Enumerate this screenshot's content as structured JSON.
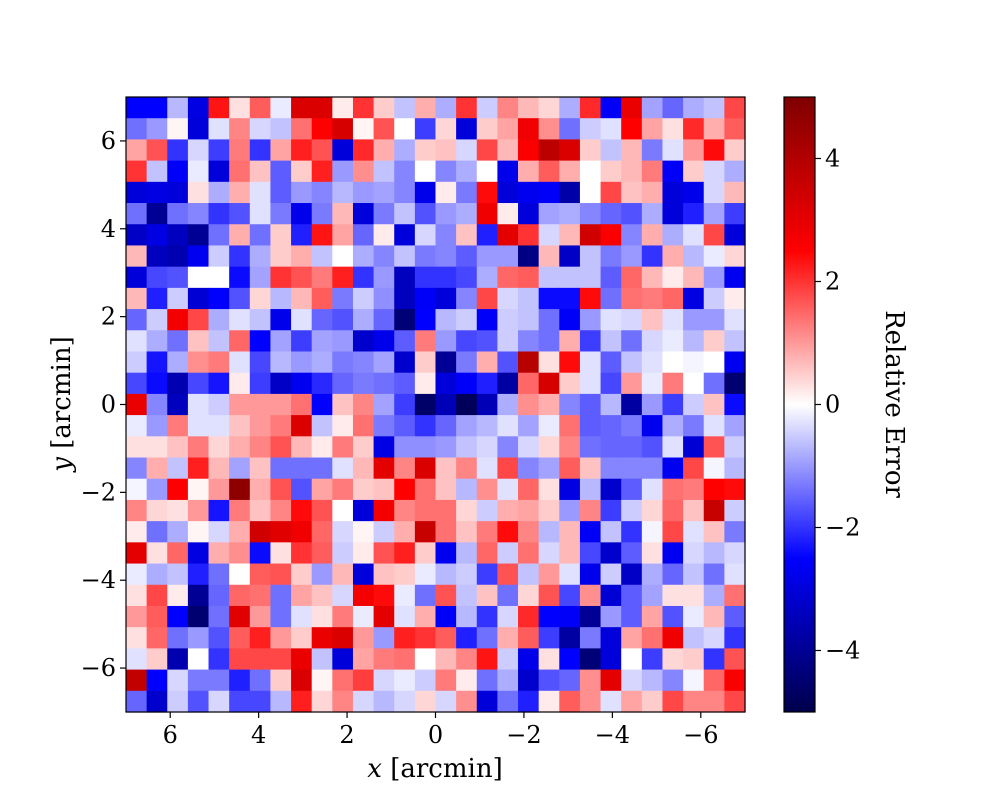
{
  "chart_data": {
    "type": "heatmap",
    "xlabel_var": "x",
    "xlabel_unit": " [arcmin]",
    "ylabel_var": "y",
    "ylabel_unit": " [arcmin]",
    "colorbar_label": "Relative Error",
    "xlim": [
      7,
      -7
    ],
    "ylim": [
      -7,
      7
    ],
    "color_range": [
      -5,
      5
    ],
    "colormap": "seismic",
    "colormap_stops": [
      "#00004c",
      "#0000ff",
      "#ffffff",
      "#ff0000",
      "#7f0000"
    ],
    "x_ticks": [
      6,
      4,
      2,
      0,
      -2,
      -4,
      -6
    ],
    "y_ticks": [
      6,
      4,
      2,
      0,
      -2,
      -4,
      -6
    ],
    "colorbar_ticks": [
      4,
      2,
      0,
      -2,
      -4
    ],
    "grid": false,
    "rows_from_top": [
      [
        -2.5,
        -2.5,
        -0.7,
        -2.9,
        2.3,
        0.3,
        1.6,
        -0.2,
        3.2,
        3.2,
        0.2,
        2.0,
        0.5,
        -0.6,
        0.8,
        -0.8,
        2.0,
        -0.5,
        1.2,
        0.7,
        0.4,
        -0.8,
        2.1,
        -2.6,
        2.9,
        -0.9,
        -1.5,
        -0.8,
        -0.6,
        1.8
      ],
      [
        -1.4,
        -1.0,
        0.1,
        -3.0,
        -0.3,
        1.2,
        -0.4,
        -0.6,
        1.4,
        2.5,
        3.3,
        0.1,
        1.7,
        0.0,
        -1.9,
        0.4,
        -3.0,
        0.5,
        0.9,
        2.8,
        1.1,
        -1.4,
        -0.5,
        -0.3,
        2.5,
        0.9,
        0.3,
        2.1,
        0.8,
        1.6
      ],
      [
        0.9,
        1.7,
        -2.0,
        -0.4,
        -1.9,
        1.3,
        -2.0,
        0.9,
        2.2,
        1.7,
        -3.0,
        2.1,
        0.8,
        -0.8,
        0.5,
        0.6,
        -0.4,
        1.8,
        0.7,
        2.6,
        3.8,
        3.2,
        0.5,
        -0.6,
        0.7,
        -1.3,
        -0.3,
        1.0,
        2.4,
        0.5
      ],
      [
        2.0,
        -0.6,
        -2.6,
        -0.2,
        -3.0,
        1.4,
        0.6,
        -1.6,
        0.5,
        2.2,
        -1.0,
        1.1,
        -0.6,
        -1.2,
        0.0,
        -1.2,
        -0.8,
        0.0,
        -2.8,
        0.8,
        1.6,
        0.8,
        0.0,
        0.5,
        0.7,
        1.3,
        -2.6,
        0.5,
        -0.4,
        -0.8
      ],
      [
        -3.0,
        -2.9,
        -3.0,
        0.3,
        -0.8,
        0.8,
        -0.3,
        -1.6,
        -1.0,
        -1.2,
        -0.7,
        -1.0,
        -0.9,
        -1.2,
        -2.8,
        0.2,
        -1.3,
        2.4,
        -3.0,
        -2.7,
        -2.6,
        -3.7,
        0.0,
        1.8,
        0.6,
        0.8,
        -3.0,
        -2.8,
        -0.4,
        0.7
      ],
      [
        -1.4,
        -4.0,
        -1.4,
        -1.2,
        -2.0,
        -1.7,
        -0.3,
        -1.3,
        -2.8,
        -1.3,
        0.7,
        -3.0,
        -1.3,
        -0.6,
        -1.7,
        -1.0,
        -0.8,
        2.8,
        0.2,
        -3.0,
        -0.9,
        -0.8,
        -1.2,
        -1.5,
        -1.7,
        -0.8,
        -3.0,
        -2.2,
        -0.9,
        -1.9
      ],
      [
        -3.3,
        -2.9,
        -3.4,
        -4.0,
        -1.4,
        0.8,
        -1.4,
        0.5,
        -2.2,
        2.3,
        0.9,
        -1.5,
        0.2,
        -3.0,
        -0.4,
        -1.2,
        0.6,
        -2.2,
        3.0,
        2.0,
        -0.4,
        0.7,
        3.4,
        2.6,
        -1.2,
        0.8,
        -0.8,
        -0.3,
        1.8,
        -3.0
      ],
      [
        0.7,
        -3.4,
        -3.6,
        -2.7,
        -0.5,
        -2.0,
        -0.8,
        0.5,
        0.8,
        -0.6,
        0.0,
        -0.8,
        -1.2,
        -0.6,
        -1.3,
        -1.2,
        -1.6,
        -1.0,
        -1.0,
        -4.2,
        0.7,
        -3.3,
        -0.6,
        -1.3,
        -1.0,
        -2.0,
        0.8,
        -0.7,
        -0.2,
        0.4
      ],
      [
        -3.0,
        -1.8,
        -1.7,
        0.0,
        0.0,
        -2.4,
        -0.9,
        2.0,
        1.7,
        1.3,
        2.2,
        -2.0,
        -1.0,
        -3.4,
        -2.0,
        -2.0,
        -1.8,
        -0.8,
        1.5,
        1.6,
        -0.6,
        -0.6,
        -0.6,
        -1.6,
        1.5,
        0.7,
        0.2,
        0.7,
        -1.0,
        -2.7
      ],
      [
        0.7,
        -2.2,
        -0.5,
        -3.1,
        -2.5,
        -1.7,
        0.4,
        -0.7,
        0.7,
        1.6,
        -1.3,
        -0.5,
        -1.1,
        -3.4,
        -2.6,
        -3.0,
        -1.2,
        1.8,
        -0.4,
        -0.6,
        -2.4,
        -2.4,
        2.4,
        -1.4,
        1.4,
        1.3,
        1.5,
        -2.9,
        -0.5,
        0.2
      ],
      [
        -1.5,
        -0.5,
        2.7,
        1.8,
        -0.8,
        -0.3,
        -0.6,
        -2.8,
        -0.3,
        -1.5,
        -1.7,
        -0.8,
        -1.5,
        -4.4,
        -2.5,
        -0.7,
        -0.5,
        -2.6,
        -0.5,
        -0.6,
        -1.4,
        -2.6,
        -1.0,
        -0.3,
        -0.4,
        0.6,
        -0.3,
        -1.0,
        -1.0,
        -0.3
      ],
      [
        -0.3,
        -0.8,
        -1.4,
        0.6,
        -0.6,
        1.5,
        -2.5,
        -0.9,
        -1.9,
        -0.9,
        -1.0,
        -3.2,
        -2.8,
        -1.6,
        1.3,
        -1.0,
        -1.8,
        -1.7,
        -0.5,
        -1.2,
        -1.4,
        0.8,
        -1.9,
        -0.6,
        -1.4,
        -0.4,
        -0.2,
        -0.7,
        0.5,
        -0.6
      ],
      [
        -0.5,
        -2.3,
        -0.8,
        1.1,
        1.3,
        -0.3,
        -1.8,
        -0.7,
        -1.0,
        -0.8,
        -1.3,
        -1.2,
        -0.9,
        -3.2,
        0.5,
        -4.0,
        -1.3,
        0.8,
        -1.7,
        3.9,
        0.3,
        2.4,
        -0.3,
        -1.6,
        -0.6,
        -0.3,
        0.0,
        -0.1,
        0.0,
        -2.7
      ],
      [
        -1.8,
        -2.4,
        -3.6,
        -1.8,
        -2.3,
        0.2,
        -1.9,
        -3.3,
        -2.7,
        -2.1,
        -1.5,
        -1.3,
        -1.4,
        -1.6,
        0.2,
        -3.0,
        -2.6,
        -2.2,
        -3.8,
        1.5,
        3.3,
        0.5,
        -0.3,
        -1.8,
        1.0,
        -0.2,
        1.3,
        0.0,
        -1.4,
        -4.5
      ],
      [
        2.9,
        -1.2,
        -3.4,
        -0.3,
        -0.5,
        1.0,
        1.0,
        1.0,
        1.4,
        -2.5,
        0.6,
        1.2,
        -0.9,
        -1.9,
        -4.6,
        -3.5,
        -4.8,
        -3.5,
        -0.8,
        1.1,
        0.8,
        -1.2,
        -1.6,
        -0.7,
        -3.8,
        -1.0,
        -1.9,
        -0.5,
        0.6,
        -2.4
      ],
      [
        -0.2,
        -1.0,
        1.3,
        -0.3,
        -0.3,
        0.6,
        1.0,
        1.3,
        3.2,
        -0.6,
        0.2,
        1.4,
        -1.3,
        -1.6,
        -2.0,
        -1.5,
        -0.9,
        -0.7,
        -0.3,
        -0.9,
        -0.2,
        1.4,
        -1.6,
        -1.5,
        -1.3,
        -2.7,
        -0.8,
        -1.3,
        -0.3,
        -0.9
      ],
      [
        0.3,
        0.3,
        0.6,
        1.3,
        0.4,
        0.8,
        1.2,
        1.7,
        0.7,
        0.2,
        1.3,
        0.5,
        -2.9,
        -1.1,
        -1.1,
        -1.0,
        -0.6,
        -0.4,
        -1.2,
        -0.4,
        0.4,
        1.2,
        -1.4,
        -1.5,
        -1.5,
        -1.7,
        -0.3,
        -3.1,
        1.7,
        -0.5
      ],
      [
        -1.2,
        0.8,
        -0.6,
        2.2,
        0.7,
        -0.9,
        0.6,
        -1.4,
        -1.4,
        -1.4,
        -0.3,
        0.7,
        3.0,
        1.2,
        3.2,
        0.6,
        1.2,
        -0.3,
        1.8,
        -1.2,
        -0.9,
        1.6,
        0.6,
        -1.2,
        -1.2,
        -1.2,
        -2.7,
        1.8,
        -0.1,
        -0.7
      ],
      [
        -0.1,
        -1.0,
        2.5,
        0.1,
        1.0,
        4.7,
        0.8,
        1.7,
        -1.7,
        0.9,
        1.3,
        0.5,
        0.6,
        2.5,
        1.4,
        0.6,
        -0.7,
        1.1,
        -0.3,
        1.5,
        0.3,
        -2.9,
        -0.7,
        -3.2,
        -1.6,
        -0.3,
        1.4,
        1.3,
        2.5,
        2.4
      ],
      [
        1.2,
        0.4,
        0.3,
        1.0,
        -2.3,
        1.3,
        0.6,
        1.2,
        2.4,
        1.7,
        0.0,
        -3.0,
        2.7,
        1.2,
        1.4,
        1.4,
        0.4,
        -0.5,
        0.8,
        0.9,
        0.5,
        -1.0,
        1.2,
        -1.9,
        -0.5,
        0.4,
        1.5,
        0.6,
        3.6,
        -0.5
      ],
      [
        0.2,
        -1.4,
        -0.8,
        0.1,
        -0.4,
        0.8,
        3.4,
        3.1,
        2.8,
        1.5,
        -0.4,
        0.1,
        -0.5,
        0.8,
        3.6,
        1.4,
        0.6,
        1.3,
        2.4,
        1.2,
        -0.7,
        0.7,
        -2.6,
        -0.6,
        -2.0,
        -0.1,
        1.8,
        -0.3,
        0.6,
        -1.3
      ],
      [
        3.0,
        0.3,
        1.5,
        -2.9,
        0.8,
        1.1,
        -2.4,
        0.3,
        2.0,
        1.6,
        -0.5,
        0.2,
        1.7,
        2.2,
        0.5,
        -2.7,
        -0.7,
        1.5,
        -0.5,
        1.4,
        -0.4,
        0.7,
        -1.8,
        -3.2,
        -1.6,
        0.3,
        -2.7,
        -0.4,
        -0.7,
        -0.4
      ],
      [
        -0.2,
        -0.8,
        -0.6,
        -2.2,
        -1.4,
        0.0,
        1.6,
        1.7,
        0.5,
        -1.0,
        0.7,
        -3.0,
        0.6,
        0.5,
        -0.2,
        -0.7,
        -0.5,
        -1.9,
        1.7,
        -0.6,
        1.0,
        -0.3,
        -2.8,
        -0.5,
        -3.3,
        -0.8,
        -1.5,
        -0.6,
        -1.4,
        -0.3
      ],
      [
        0.3,
        1.8,
        0.2,
        -4.0,
        -1.5,
        1.5,
        1.4,
        -1.4,
        0.9,
        0.6,
        -0.4,
        2.7,
        2.4,
        -0.2,
        -1.4,
        1.7,
        -0.6,
        0.6,
        -1.4,
        0.4,
        1.7,
        -1.8,
        1.1,
        -3.1,
        -1.6,
        -0.9,
        0.3,
        0.3,
        -0.8,
        1.4
      ],
      [
        1.0,
        1.6,
        -2.5,
        -4.5,
        -1.4,
        3.1,
        1.0,
        -1.4,
        -0.3,
        0.3,
        1.3,
        -0.2,
        3.0,
        -0.3,
        0.8,
        -2.6,
        -0.7,
        -2.0,
        -0.4,
        2.1,
        -2.5,
        -2.6,
        -4.0,
        -1.0,
        -1.6,
        0.9,
        -1.7,
        -0.2,
        0.7,
        -1.6
      ],
      [
        0.3,
        1.5,
        -1.4,
        -1.0,
        -1.7,
        1.6,
        2.2,
        1.0,
        0.5,
        2.9,
        3.2,
        1.0,
        -1.0,
        2.2,
        2.0,
        1.6,
        -2.2,
        -1.4,
        0.8,
        1.6,
        -1.9,
        -3.8,
        -1.3,
        -3.0,
        0.9,
        1.4,
        2.8,
        -0.6,
        -0.4,
        -2.0
      ],
      [
        -0.3,
        0.5,
        -3.6,
        0.0,
        -2.0,
        1.8,
        1.8,
        1.8,
        2.9,
        -0.6,
        -3.0,
        0.9,
        1.3,
        1.4,
        0.0,
        0.7,
        1.2,
        2.3,
        -0.5,
        -2.8,
        0.3,
        -2.5,
        -4.4,
        -3.0,
        0.0,
        -1.9,
        0.4,
        0.5,
        -2.0,
        1.7
      ],
      [
        3.7,
        -2.5,
        -0.4,
        -1.3,
        -1.3,
        -2.2,
        -1.4,
        0.5,
        3.2,
        0.1,
        1.4,
        1.9,
        -0.4,
        -0.2,
        -0.5,
        1.3,
        0.2,
        -1.4,
        -0.8,
        -3.2,
        -1.7,
        -1.5,
        1.1,
        3.0,
        -0.4,
        -0.7,
        -1.2,
        -0.1,
        1.5,
        2.6
      ],
      [
        -1.5,
        -3.2,
        -0.5,
        -1.7,
        -0.4,
        -1.8,
        -1.8,
        -0.7,
        2.2,
        0.4,
        1.2,
        -0.4,
        -0.7,
        -0.4,
        0.4,
        -0.4,
        1.1,
        -3.0,
        -1.4,
        -2.2,
        0.2,
        1.6,
        1.1,
        -0.3,
        0.9,
        0.5,
        1.8,
        1.2,
        1.2,
        1.8
      ]
    ]
  }
}
